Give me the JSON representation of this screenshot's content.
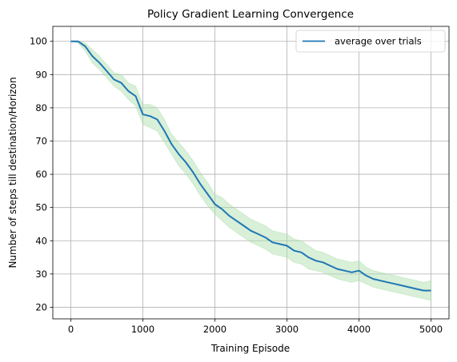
{
  "chart_data": {
    "type": "line",
    "title": "Policy Gradient Learning Convergence",
    "xlabel": "Training Episode",
    "ylabel": "Number of steps till destination/Horizon",
    "xlim": [
      -250,
      5250
    ],
    "ylim": [
      16.5,
      104.5
    ],
    "xticks": [
      0,
      1000,
      2000,
      3000,
      4000,
      5000
    ],
    "yticks": [
      20,
      30,
      40,
      50,
      60,
      70,
      80,
      90,
      100
    ],
    "grid": true,
    "legend": {
      "position": "top-right",
      "entries": [
        "average over trials"
      ]
    },
    "colors": {
      "line": "#1f77b4",
      "band": "#a8dba8"
    },
    "series": [
      {
        "name": "average over trials",
        "x": [
          0,
          100,
          200,
          300,
          400,
          500,
          600,
          700,
          800,
          900,
          1000,
          1100,
          1200,
          1300,
          1400,
          1500,
          1600,
          1700,
          1800,
          1900,
          2000,
          2100,
          2200,
          2300,
          2400,
          2500,
          2600,
          2700,
          2800,
          2900,
          3000,
          3100,
          3200,
          3300,
          3400,
          3500,
          3600,
          3700,
          3800,
          3900,
          4000,
          4100,
          4200,
          4300,
          4400,
          4500,
          4600,
          4700,
          4800,
          4900,
          5000
        ],
        "y": [
          100,
          100,
          98.5,
          95.5,
          93.5,
          91,
          88.5,
          87.5,
          85,
          83.5,
          78,
          77.5,
          76.5,
          73,
          69,
          66,
          63.5,
          60.5,
          57,
          54,
          51,
          49.5,
          47.5,
          46,
          44.5,
          43,
          42,
          41,
          39.5,
          39,
          38.5,
          37,
          36.5,
          35,
          34,
          33.5,
          32.5,
          31.5,
          31,
          30.5,
          31,
          29.5,
          28.5,
          28,
          27.5,
          27,
          26.5,
          26,
          25.5,
          25,
          25
        ],
        "lower": [
          100,
          99.5,
          97,
          93.5,
          91.5,
          89,
          86.5,
          85,
          82.5,
          80.5,
          75,
          74,
          73,
          69.5,
          66,
          62.5,
          60,
          57,
          53.5,
          50.5,
          48,
          46,
          44,
          42.5,
          41,
          39.5,
          38.5,
          37.5,
          36,
          35.5,
          35,
          33.5,
          33,
          31.5,
          31,
          30.5,
          29.5,
          28.5,
          28,
          27.5,
          28,
          27,
          26,
          25.5,
          25,
          24.5,
          24,
          23.5,
          23,
          22.5,
          22
        ],
        "upper": [
          100,
          100,
          99.5,
          97.5,
          95.5,
          93,
          90.5,
          90,
          87.5,
          86.5,
          81,
          81,
          80,
          76.5,
          72,
          69.5,
          67,
          64,
          60.5,
          57.5,
          54,
          53,
          51,
          49.5,
          48,
          46.5,
          45.5,
          44.5,
          43,
          42.5,
          42,
          40.5,
          40,
          38.5,
          37,
          36.5,
          35.5,
          34.5,
          34,
          33.5,
          34,
          32,
          31,
          30.5,
          30,
          29.5,
          29,
          28.5,
          28,
          27.5,
          28
        ]
      }
    ]
  }
}
